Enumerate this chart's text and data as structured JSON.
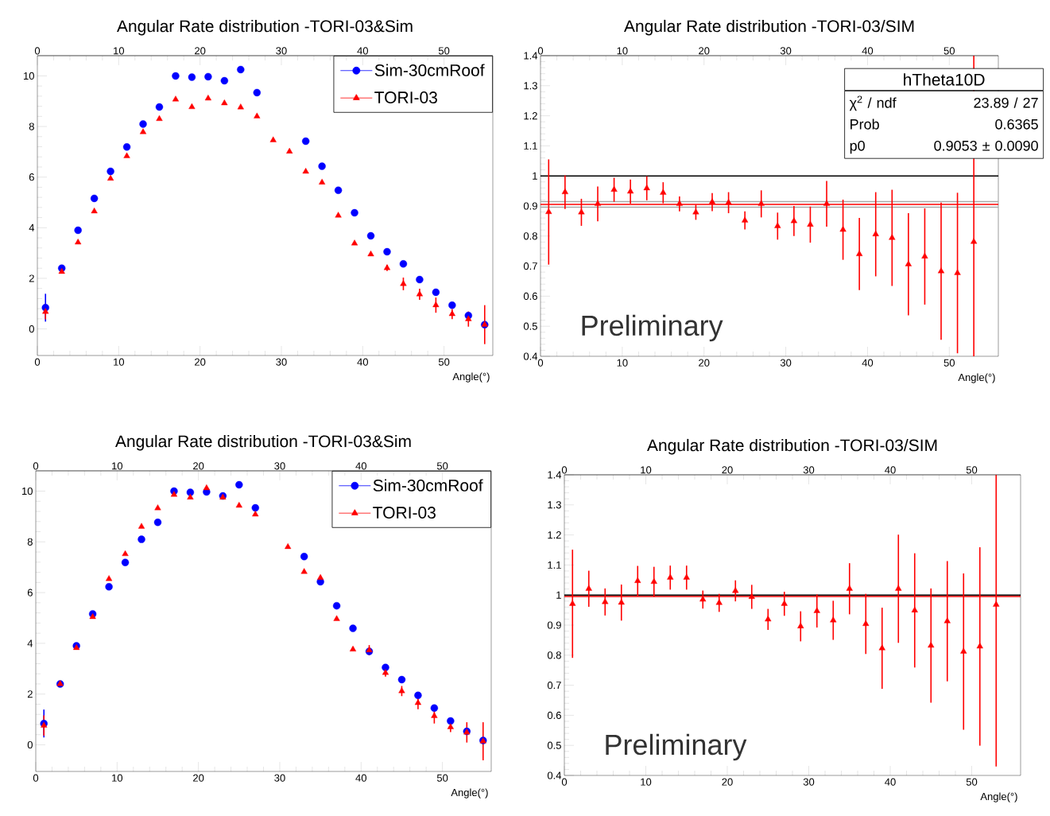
{
  "chart_data": [
    {
      "type": "scatter",
      "title": "Angular Rate distribution -TORI-03&Sim",
      "xlabel": "Angle(°)",
      "legend": "top right",
      "x": [
        1,
        3,
        5,
        7,
        9,
        11,
        13,
        15,
        17,
        19,
        21,
        23,
        25,
        27,
        29,
        31,
        33,
        35,
        37,
        39,
        41,
        43,
        45,
        47,
        49,
        51,
        53,
        55
      ],
      "xlim": [
        0,
        56
      ],
      "xticks": [
        0,
        10,
        20,
        30,
        40,
        50
      ],
      "x2lim": [
        0,
        56
      ],
      "x2ticks": [
        0,
        10,
        20,
        30,
        40,
        50
      ],
      "ylim": [
        -1.05,
        10.8
      ],
      "yticks": [
        0,
        2,
        4,
        6,
        8,
        10
      ],
      "series": [
        {
          "name": "Sim-30cmRoof",
          "color": "#0000ff",
          "marker": "circle",
          "values": [
            0.84,
            2.4,
            3.9,
            5.16,
            6.23,
            7.19,
            8.1,
            8.77,
            10.0,
            9.95,
            9.97,
            9.81,
            10.25,
            9.34,
            null,
            null,
            7.42,
            6.43,
            5.48,
            4.59,
            3.68,
            3.05,
            2.57,
            1.95,
            1.45,
            0.94,
            0.53,
            0.17
          ],
          "errors": [
            0.55,
            null,
            null,
            null,
            null,
            null,
            null,
            null,
            null,
            null,
            null,
            null,
            null,
            null,
            null,
            null,
            null,
            null,
            null,
            null,
            null,
            null,
            null,
            null,
            null,
            null,
            null,
            null
          ]
        },
        {
          "name": "TORI-03",
          "color": "#ff0000",
          "marker": "triangle",
          "values": [
            0.68,
            2.26,
            3.42,
            4.65,
            5.94,
            6.83,
            7.78,
            8.3,
            9.07,
            8.77,
            9.11,
            8.92,
            8.76,
            8.4,
            7.46,
            7.01,
            6.22,
            5.79,
            4.48,
            3.38,
            2.95,
            2.41,
            1.78,
            1.37,
            0.94,
            0.59,
            0.39,
            0.17
          ],
          "errors": [
            0.3,
            null,
            null,
            null,
            null,
            null,
            null,
            null,
            null,
            null,
            null,
            null,
            null,
            null,
            null,
            null,
            null,
            null,
            null,
            null,
            null,
            0.12,
            0.25,
            0.22,
            0.3,
            0.2,
            0.3,
            0.77
          ]
        }
      ]
    },
    {
      "type": "scatter",
      "title": "Angular Rate distribution -TORI-03/SIM",
      "xlabel": "Angle(°)",
      "xlim": [
        0,
        56
      ],
      "xticks": [
        0,
        10,
        20,
        30,
        40,
        50
      ],
      "x2lim": [
        0,
        56
      ],
      "x2ticks": [
        0,
        10,
        20,
        30,
        40,
        50
      ],
      "ylim": [
        0.4,
        1.4
      ],
      "yticks": [
        0.4,
        0.5,
        0.6,
        0.7,
        0.8,
        0.9,
        1,
        1.1,
        1.2,
        1.3,
        1.4
      ],
      "x": [
        1,
        3,
        5,
        7,
        9,
        11,
        13,
        15,
        17,
        19,
        21,
        23,
        25,
        27,
        29,
        31,
        33,
        35,
        37,
        39,
        41,
        43,
        45,
        47,
        49,
        51,
        53
      ],
      "ref_lines": [
        {
          "axis": "y",
          "value": 1,
          "color": "#000000"
        },
        {
          "axis": "y",
          "value": 0.8963,
          "color": "#aaaaaa"
        },
        {
          "axis": "y",
          "value": 0.9143,
          "color": "#aaaaaa"
        },
        {
          "axis": "y",
          "value": 0.9053,
          "color": "#ff0000"
        }
      ],
      "annotations": [
        "Preliminary",
        "hTheta10D",
        "χ$^{2}$ / ndf",
        "23.89 / 27",
        "Prob",
        "0.6365",
        "p0",
        "0.9053 ± 0.0090"
      ],
      "series": [
        {
          "color": "#ff0000",
          "marker": "triangle",
          "values": [
            0.88,
            0.946,
            0.879,
            0.907,
            0.954,
            0.948,
            0.959,
            0.944,
            0.907,
            0.879,
            0.913,
            0.911,
            0.852,
            0.907,
            0.833,
            0.85,
            0.838,
            0.907,
            0.821,
            0.74,
            0.806,
            0.794,
            0.706,
            0.732,
            0.683,
            0.677,
            0.781
          ],
          "errors": [
            0.175,
            0.056,
            0.045,
            0.058,
            0.04,
            0.04,
            0.04,
            0.035,
            0.025,
            0.025,
            0.03,
            0.035,
            0.03,
            0.045,
            0.045,
            0.05,
            0.06,
            0.076,
            0.1,
            0.12,
            0.14,
            0.16,
            0.17,
            0.16,
            0.228,
            0.267,
            [
              0.4,
              1.4
            ]
          ]
        }
      ]
    },
    {
      "type": "scatter",
      "title": "Angular Rate distribution -TORI-03&Sim",
      "xlabel": "Angle(°)",
      "legend": "top right",
      "x": [
        1,
        3,
        5,
        7,
        9,
        11,
        13,
        15,
        17,
        19,
        21,
        23,
        25,
        27,
        29,
        31,
        33,
        35,
        37,
        39,
        41,
        43,
        45,
        47,
        49,
        51,
        53,
        55
      ],
      "xlim": [
        0,
        56
      ],
      "xticks": [
        0,
        10,
        20,
        30,
        40,
        50
      ],
      "x2lim": [
        0,
        56
      ],
      "x2ticks": [
        0,
        10,
        20,
        30,
        40,
        50
      ],
      "ylim": [
        -1.05,
        10.8
      ],
      "yticks": [
        0,
        2,
        4,
        6,
        8,
        10
      ],
      "series": [
        {
          "name": "Sim-30cmRoof",
          "color": "#0000ff",
          "marker": "circle",
          "values": [
            0.84,
            2.4,
            3.9,
            5.16,
            6.23,
            7.19,
            8.1,
            8.77,
            10.0,
            9.95,
            9.97,
            9.81,
            10.25,
            9.34,
            null,
            null,
            7.42,
            6.43,
            5.48,
            4.59,
            3.68,
            3.05,
            2.57,
            1.95,
            1.45,
            0.94,
            0.53,
            0.17
          ],
          "errors": [
            0.55,
            null,
            null,
            null,
            null,
            null,
            null,
            null,
            null,
            null,
            null,
            null,
            null,
            null,
            null,
            null,
            null,
            null,
            null,
            null,
            null,
            null,
            null,
            null,
            null,
            null,
            null,
            null
          ]
        },
        {
          "name": "TORI-03",
          "color": "#ff0000",
          "marker": "triangle",
          "values": [
            0.76,
            2.4,
            3.82,
            5.04,
            6.54,
            7.52,
            8.6,
            9.33,
            9.86,
            9.75,
            10.12,
            9.75,
            9.43,
            9.08,
            null,
            7.8,
            6.82,
            6.58,
            4.96,
            3.76,
            3.73,
            2.84,
            2.12,
            1.65,
            1.14,
            0.7,
            0.49,
            0.14
          ],
          "errors": [
            0.4,
            null,
            null,
            null,
            null,
            null,
            null,
            null,
            null,
            null,
            null,
            null,
            null,
            null,
            null,
            null,
            null,
            null,
            null,
            null,
            0.2,
            0.15,
            0.2,
            0.25,
            0.3,
            0.2,
            0.4,
            0.75
          ]
        }
      ]
    },
    {
      "type": "scatter",
      "title": "Angular Rate distribution -TORI-03/SIM",
      "xlabel": "Angle(°)",
      "x": [
        1,
        3,
        5,
        7,
        9,
        11,
        13,
        15,
        17,
        19,
        21,
        23,
        25,
        27,
        29,
        31,
        33,
        35,
        37,
        39,
        41,
        43,
        45,
        47,
        49,
        51,
        53
      ],
      "xlim": [
        0,
        56
      ],
      "xticks": [
        0,
        10,
        20,
        30,
        40,
        50
      ],
      "x2lim": [
        0,
        56
      ],
      "x2ticks": [
        0,
        10,
        20,
        30,
        40,
        50
      ],
      "ylim": [
        0.4,
        1.4
      ],
      "yticks": [
        0.4,
        0.5,
        0.6,
        0.7,
        0.8,
        0.9,
        1,
        1.1,
        1.2,
        1.3,
        1.4
      ],
      "ref_lines": [
        {
          "axis": "y",
          "value": 1,
          "color": "#000000"
        },
        {
          "axis": "y",
          "value": 0.995,
          "color": "#ff0000"
        }
      ],
      "annotations": [
        "Preliminary"
      ],
      "series": [
        {
          "color": "#ff0000",
          "marker": "triangle",
          "values": [
            0.971,
            1.021,
            0.977,
            0.975,
            1.047,
            1.044,
            1.058,
            1.058,
            0.985,
            0.974,
            1.014,
            0.994,
            0.919,
            0.971,
            0.896,
            0.947,
            0.916,
            1.021,
            0.904,
            0.823,
            1.021,
            0.949,
            0.832,
            0.913,
            0.812,
            0.829,
            0.968
          ],
          "errors": [
            0.18,
            0.06,
            0.045,
            0.06,
            0.05,
            0.05,
            0.04,
            0.04,
            0.03,
            0.03,
            0.035,
            0.04,
            0.035,
            0.04,
            0.05,
            0.055,
            0.065,
            0.085,
            0.1,
            0.135,
            0.18,
            0.19,
            0.19,
            0.2,
            0.26,
            0.33,
            [
              0.43,
              1.4
            ]
          ]
        }
      ]
    }
  ]
}
